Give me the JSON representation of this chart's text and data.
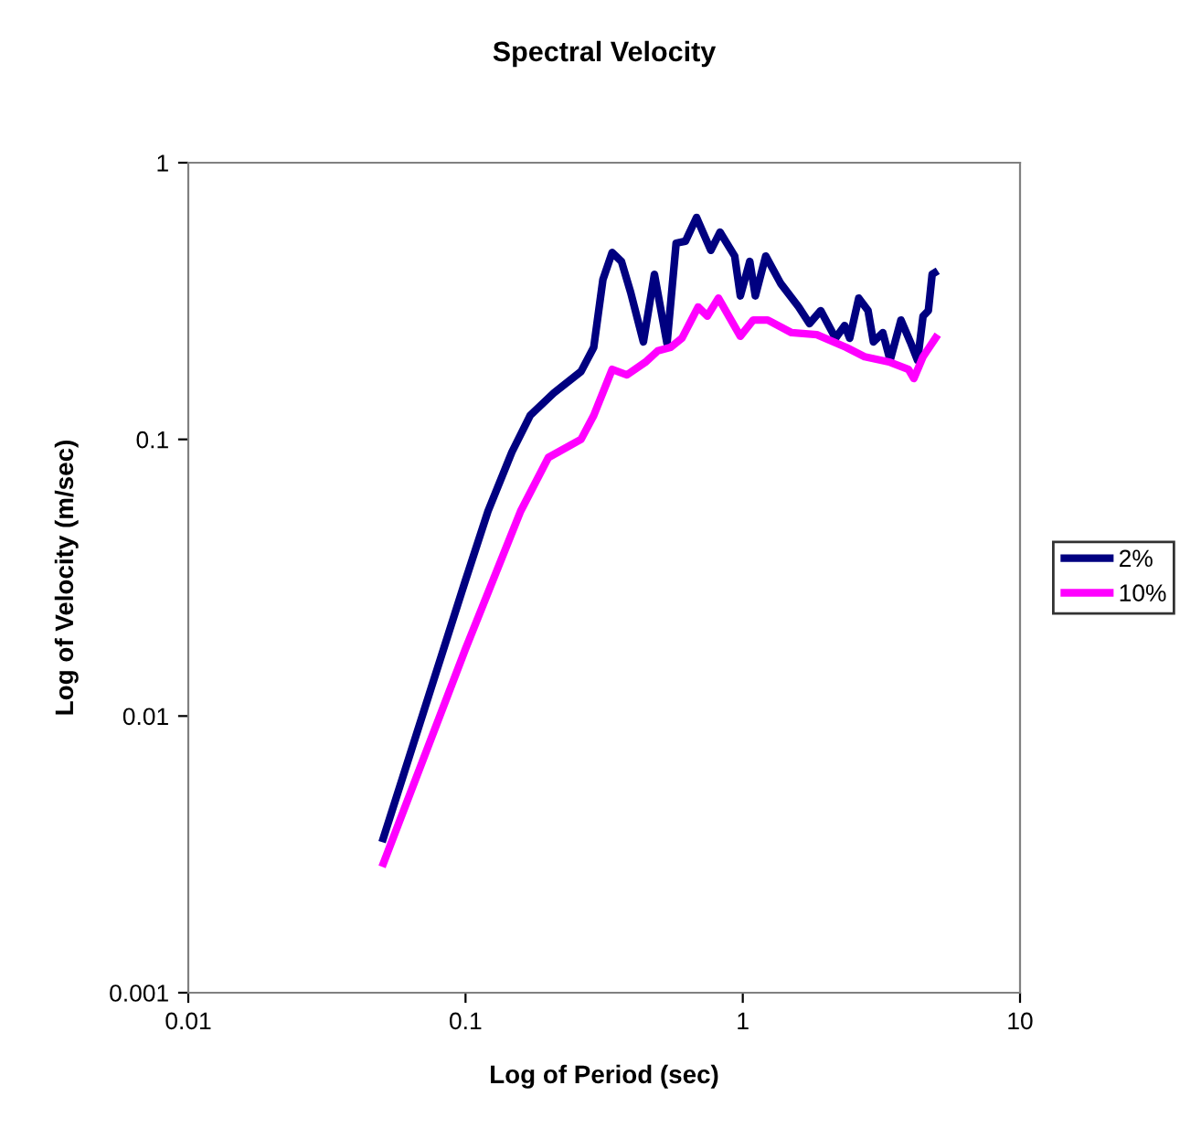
{
  "chart_data": {
    "type": "line",
    "title": "Spectral Velocity",
    "xlabel": "Log of Period (sec)",
    "ylabel": "Log of Velocity (m/sec)",
    "log": "xy",
    "xlim": [
      0.01,
      10
    ],
    "ylim": [
      0.001,
      1
    ],
    "xticks": [
      0.01,
      0.1,
      1,
      10
    ],
    "yticks": [
      0.001,
      0.01,
      0.1,
      1
    ],
    "grid": false,
    "legend": "right",
    "marker": "none",
    "line_style": "solid",
    "series": [
      {
        "name": "2%",
        "color": "#000080",
        "x": [
          0.05,
          0.1,
          0.1205,
          0.147,
          0.171,
          0.208,
          0.261,
          0.29,
          0.313,
          0.338,
          0.365,
          0.394,
          0.438,
          0.48,
          0.533,
          0.575,
          0.621,
          0.681,
          0.767,
          0.828,
          0.935,
          0.98,
          1.06,
          1.11,
          1.21,
          1.37,
          1.59,
          1.74,
          1.91,
          2.16,
          2.33,
          2.43,
          2.62,
          2.83,
          2.96,
          3.2,
          3.4,
          3.72,
          4.02,
          4.27,
          4.47,
          4.67,
          4.82,
          5.05
        ],
        "values": [
          0.0035,
          0.031,
          0.055,
          0.09,
          0.122,
          0.147,
          0.176,
          0.215,
          0.378,
          0.474,
          0.44,
          0.34,
          0.225,
          0.395,
          0.222,
          0.512,
          0.52,
          0.634,
          0.482,
          0.561,
          0.46,
          0.33,
          0.44,
          0.33,
          0.46,
          0.366,
          0.301,
          0.262,
          0.292,
          0.232,
          0.258,
          0.232,
          0.324,
          0.292,
          0.225,
          0.243,
          0.193,
          0.27,
          0.225,
          0.193,
          0.279,
          0.292,
          0.395,
          0.407
        ]
      },
      {
        "name": "10%",
        "color": "#ff00ff",
        "x": [
          0.05,
          0.1,
          0.158,
          0.199,
          0.261,
          0.29,
          0.338,
          0.382,
          0.445,
          0.494,
          0.549,
          0.603,
          0.69,
          0.745,
          0.817,
          0.98,
          1.09,
          1.23,
          1.5,
          1.85,
          2.36,
          2.75,
          3.4,
          3.96,
          4.14,
          4.47,
          5.05
        ],
        "values": [
          0.00285,
          0.0175,
          0.055,
          0.086,
          0.1,
          0.122,
          0.179,
          0.171,
          0.19,
          0.209,
          0.215,
          0.232,
          0.301,
          0.279,
          0.324,
          0.236,
          0.27,
          0.27,
          0.243,
          0.239,
          0.215,
          0.199,
          0.19,
          0.179,
          0.166,
          0.199,
          0.239
        ]
      }
    ]
  }
}
